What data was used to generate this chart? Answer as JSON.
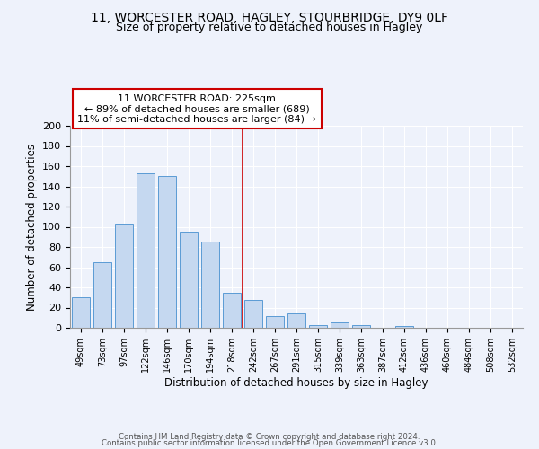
{
  "title1": "11, WORCESTER ROAD, HAGLEY, STOURBRIDGE, DY9 0LF",
  "title2": "Size of property relative to detached houses in Hagley",
  "xlabel": "Distribution of detached houses by size in Hagley",
  "ylabel": "Number of detached properties",
  "bar_labels": [
    "49sqm",
    "73sqm",
    "97sqm",
    "122sqm",
    "146sqm",
    "170sqm",
    "194sqm",
    "218sqm",
    "242sqm",
    "267sqm",
    "291sqm",
    "315sqm",
    "339sqm",
    "363sqm",
    "387sqm",
    "412sqm",
    "436sqm",
    "460sqm",
    "484sqm",
    "508sqm",
    "532sqm"
  ],
  "bar_values": [
    30,
    65,
    103,
    153,
    150,
    95,
    85,
    35,
    28,
    12,
    14,
    3,
    5,
    3,
    0,
    2,
    0,
    0,
    0,
    0,
    0
  ],
  "bar_color": "#c5d8f0",
  "bar_edge_color": "#5b9bd5",
  "vline_x": 7.5,
  "vline_color": "#cc0000",
  "annotation_title": "11 WORCESTER ROAD: 225sqm",
  "annotation_line1": "← 89% of detached houses are smaller (689)",
  "annotation_line2": "11% of semi-detached houses are larger (84) →",
  "annotation_box_edge": "#cc0000",
  "annotation_box_bg": "#ffffff",
  "ylim": [
    0,
    200
  ],
  "yticks": [
    0,
    20,
    40,
    60,
    80,
    100,
    120,
    140,
    160,
    180,
    200
  ],
  "footer1": "Contains HM Land Registry data © Crown copyright and database right 2024.",
  "footer2": "Contains public sector information licensed under the Open Government Licence v3.0.",
  "bg_color": "#eef2fb"
}
